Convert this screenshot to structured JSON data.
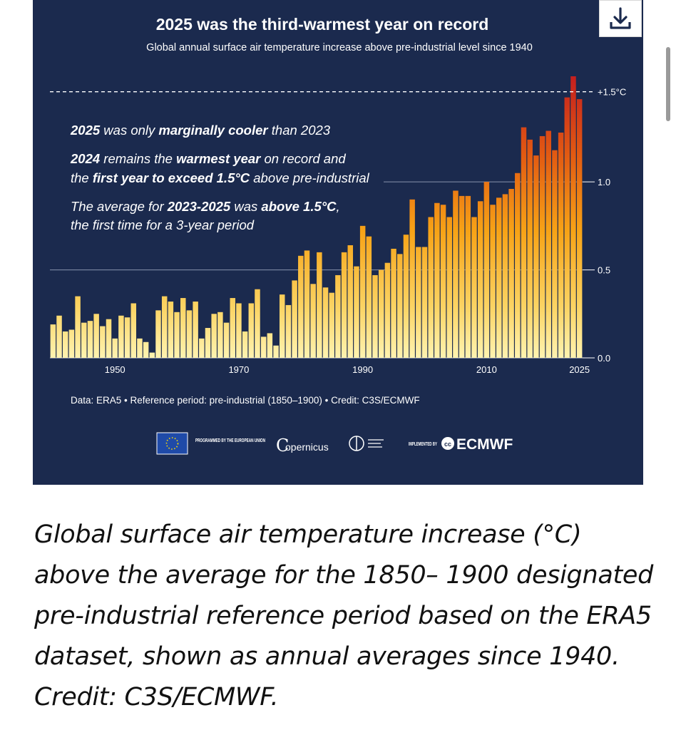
{
  "download_button": {
    "icon": "download-icon"
  },
  "chart_data": {
    "type": "bar",
    "title": "2025 was the third-warmest year on record",
    "subtitle": "Global annual surface air temperature increase above pre-industrial level since 1940",
    "xlabel": "",
    "ylabel": "",
    "x": [
      1940,
      1941,
      1942,
      1943,
      1944,
      1945,
      1946,
      1947,
      1948,
      1949,
      1950,
      1951,
      1952,
      1953,
      1954,
      1955,
      1956,
      1957,
      1958,
      1959,
      1960,
      1961,
      1962,
      1963,
      1964,
      1965,
      1966,
      1967,
      1968,
      1969,
      1970,
      1971,
      1972,
      1973,
      1974,
      1975,
      1976,
      1977,
      1978,
      1979,
      1980,
      1981,
      1982,
      1983,
      1984,
      1985,
      1986,
      1987,
      1988,
      1989,
      1990,
      1991,
      1992,
      1993,
      1994,
      1995,
      1996,
      1997,
      1998,
      1999,
      2000,
      2001,
      2002,
      2003,
      2004,
      2005,
      2006,
      2007,
      2008,
      2009,
      2010,
      2011,
      2012,
      2013,
      2014,
      2015,
      2016,
      2017,
      2018,
      2019,
      2020,
      2021,
      2022,
      2023,
      2024,
      2025
    ],
    "values": [
      0.19,
      0.24,
      0.15,
      0.16,
      0.35,
      0.2,
      0.21,
      0.25,
      0.18,
      0.22,
      0.11,
      0.24,
      0.23,
      0.31,
      0.11,
      0.09,
      0.03,
      0.27,
      0.35,
      0.32,
      0.26,
      0.34,
      0.27,
      0.32,
      0.11,
      0.17,
      0.25,
      0.26,
      0.2,
      0.34,
      0.31,
      0.15,
      0.31,
      0.39,
      0.12,
      0.14,
      0.07,
      0.36,
      0.3,
      0.44,
      0.58,
      0.61,
      0.42,
      0.6,
      0.4,
      0.37,
      0.47,
      0.6,
      0.64,
      0.52,
      0.75,
      0.69,
      0.47,
      0.5,
      0.54,
      0.62,
      0.59,
      0.7,
      0.9,
      0.63,
      0.63,
      0.8,
      0.88,
      0.87,
      0.8,
      0.95,
      0.92,
      0.92,
      0.8,
      0.89,
      1.0,
      0.87,
      0.91,
      0.93,
      0.96,
      1.05,
      1.31,
      1.24,
      1.15,
      1.26,
      1.29,
      1.18,
      1.28,
      1.48,
      1.6,
      1.47
    ],
    "ylim": [
      0,
      1.6
    ],
    "yticks": [
      0.0,
      0.5,
      1.0
    ],
    "ytick_labels": [
      "0.0",
      "0.5",
      "1.0"
    ],
    "xtick_labels": [
      {
        "year": 1950,
        "label": "1950"
      },
      {
        "year": 1970,
        "label": "1970"
      },
      {
        "year": 1990,
        "label": "1990"
      },
      {
        "year": 2010,
        "label": "2010"
      },
      {
        "year": 2025,
        "label": "2025"
      }
    ],
    "reference_line": {
      "value": 1.5,
      "label": "+1.5°C"
    },
    "colors": {
      "low": "#fff3b0",
      "mid": "#f7a316",
      "high": "#c41f1f",
      "background": "#1b2a4e"
    },
    "annotations": [
      {
        "lines": [
          [
            {
              "text": "2025",
              "bold": true
            },
            {
              "text": " was only ",
              "bold": false
            },
            {
              "text": "marginally cooler",
              "bold": true
            },
            {
              "text": " than 2023",
              "bold": false
            }
          ]
        ]
      },
      {
        "lines": [
          [
            {
              "text": "2024",
              "bold": true
            },
            {
              "text": " remains the ",
              "bold": false
            },
            {
              "text": "warmest year",
              "bold": true
            },
            {
              "text": " on record and",
              "bold": false
            }
          ],
          [
            {
              "text": "the ",
              "bold": false
            },
            {
              "text": "first year to exceed 1.5°C",
              "bold": true
            },
            {
              "text": " above pre-industrial",
              "bold": false
            }
          ]
        ]
      },
      {
        "lines": [
          [
            {
              "text": "The average for ",
              "bold": false
            },
            {
              "text": "2023-2025",
              "bold": true
            },
            {
              "text": " was ",
              "bold": false
            },
            {
              "text": "above 1.5°C",
              "bold": true
            },
            {
              "text": ",",
              "bold": false
            }
          ],
          [
            {
              "text": "the first time for a 3-year period",
              "bold": false
            }
          ]
        ]
      }
    ],
    "credit": "Data: ERA5 • Reference period: pre-industrial (1850–1900) • Credit: C3S/ECMWF"
  },
  "logos": {
    "eu_text": "PROGRAMMED BY THE EUROPEAN UNION",
    "copernicus": "opernicus",
    "copernicus_initial": "C",
    "ecmwf": "ECMWF",
    "ecmwf_prefix": "IMPLEMENTED BY"
  },
  "caption": "Global surface air temperature increase (°C) above the average for the 1850– 1900 designated pre-industrial reference period based on the ERA5 dataset, shown as annual averages since 1940. Credit: C3S/ECMWF."
}
